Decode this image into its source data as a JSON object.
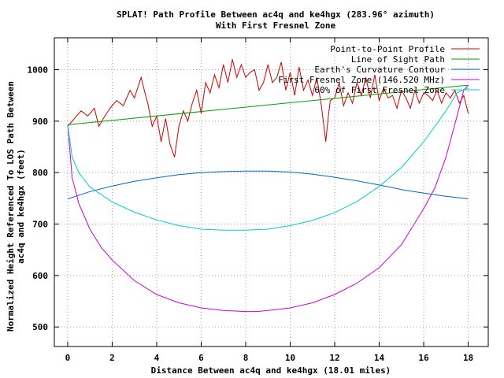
{
  "chart_data": {
    "type": "line",
    "title_line1": "SPLAT! Path Profile Between ac4q and ke4hgx (283.96° azimuth)",
    "title_line2": "With First Fresnel Zone",
    "xlabel": "Distance Between ac4q and ke4hgx (18.01 miles)",
    "ylabel_line1": "Normalized Height Referenced To LOS Path Between",
    "ylabel_line2": "ac4q and ke4hgx (feet)",
    "xlim": [
      -0.6,
      18.9
    ],
    "ylim": [
      462,
      1062
    ],
    "xticks": [
      0,
      2,
      4,
      6,
      8,
      10,
      12,
      14,
      16,
      18
    ],
    "yticks": [
      500,
      600,
      700,
      800,
      900,
      1000
    ],
    "grid": true,
    "legend_position": "top-right",
    "series": [
      {
        "name": "Point-to-Point Profile",
        "color": "#cc0000",
        "x": [
          0,
          0.3,
          0.6,
          0.9,
          1.2,
          1.4,
          1.6,
          1.9,
          2.2,
          2.5,
          2.8,
          3.0,
          3.3,
          3.5,
          3.6,
          3.8,
          4.0,
          4.2,
          4.4,
          4.6,
          4.8,
          5.0,
          5.2,
          5.4,
          5.6,
          5.8,
          6.0,
          6.2,
          6.4,
          6.6,
          6.8,
          7.0,
          7.2,
          7.4,
          7.6,
          7.8,
          8.0,
          8.2,
          8.4,
          8.6,
          8.8,
          9.0,
          9.2,
          9.4,
          9.6,
          9.8,
          10.0,
          10.2,
          10.4,
          10.6,
          10.8,
          11.0,
          11.2,
          11.4,
          11.6,
          11.7,
          11.8,
          12.0,
          12.2,
          12.4,
          12.6,
          12.8,
          13.0,
          13.2,
          13.4,
          13.6,
          13.8,
          14.0,
          14.2,
          14.4,
          14.6,
          14.8,
          15.0,
          15.2,
          15.4,
          15.6,
          15.8,
          16.0,
          16.2,
          16.4,
          16.6,
          16.8,
          17.0,
          17.2,
          17.4,
          17.6,
          17.8,
          18.0
        ],
        "y": [
          890,
          905,
          920,
          910,
          925,
          890,
          905,
          925,
          940,
          930,
          960,
          945,
          985,
          950,
          935,
          890,
          910,
          860,
          905,
          855,
          830,
          890,
          920,
          900,
          935,
          960,
          915,
          975,
          955,
          990,
          965,
          1010,
          975,
          1020,
          985,
          1010,
          985,
          995,
          1000,
          960,
          975,
          1010,
          975,
          985,
          1015,
          960,
          995,
          950,
          1005,
          960,
          980,
          950,
          985,
          930,
          860,
          905,
          940,
          945,
          975,
          930,
          955,
          935,
          975,
          950,
          985,
          945,
          990,
          940,
          965,
          945,
          950,
          925,
          960,
          945,
          925,
          960,
          935,
          955,
          950,
          940,
          960,
          935,
          955,
          945,
          960,
          935,
          950,
          915
        ]
      },
      {
        "name": "Line of Sight Path",
        "color": "#00a000",
        "x": [
          0,
          18
        ],
        "y": [
          893,
          970
        ]
      },
      {
        "name": "Earth's Curvature Contour",
        "color": "#0066cc",
        "x": [
          0,
          1,
          2,
          3,
          4,
          5,
          6,
          7,
          8,
          9,
          10,
          11,
          12,
          13,
          14,
          15,
          16,
          17,
          18
        ],
        "y": [
          749,
          763,
          774,
          783,
          790,
          796,
          800,
          802,
          803,
          803,
          801,
          797,
          791,
          784,
          776,
          767,
          760,
          754,
          749
        ]
      },
      {
        "name": "First Fresnel Zone (146.520 MHz)",
        "color": "#cc00cc",
        "x": [
          0,
          0.2,
          0.5,
          1,
          1.5,
          2,
          3,
          4,
          5,
          6,
          7,
          8,
          8.5,
          9,
          10,
          11,
          12,
          13,
          14,
          15,
          16,
          16.5,
          17,
          17.5,
          17.8,
          18
        ],
        "y": [
          893,
          790,
          740,
          690,
          655,
          630,
          590,
          563,
          547,
          537,
          532,
          530,
          530,
          532,
          537,
          547,
          563,
          585,
          615,
          660,
          730,
          770,
          830,
          910,
          960,
          970
        ]
      },
      {
        "name": "60% of First Fresnel Zone",
        "color": "#00cccc",
        "x": [
          0,
          0.2,
          0.5,
          1,
          2,
          3,
          4,
          5,
          6,
          7,
          8,
          9,
          10,
          11,
          12,
          13,
          14,
          15,
          16,
          17,
          17.5,
          18
        ],
        "y": [
          893,
          830,
          800,
          772,
          743,
          723,
          708,
          697,
          690,
          688,
          688,
          690,
          697,
          707,
          722,
          744,
          773,
          810,
          860,
          920,
          955,
          965
        ]
      }
    ]
  }
}
